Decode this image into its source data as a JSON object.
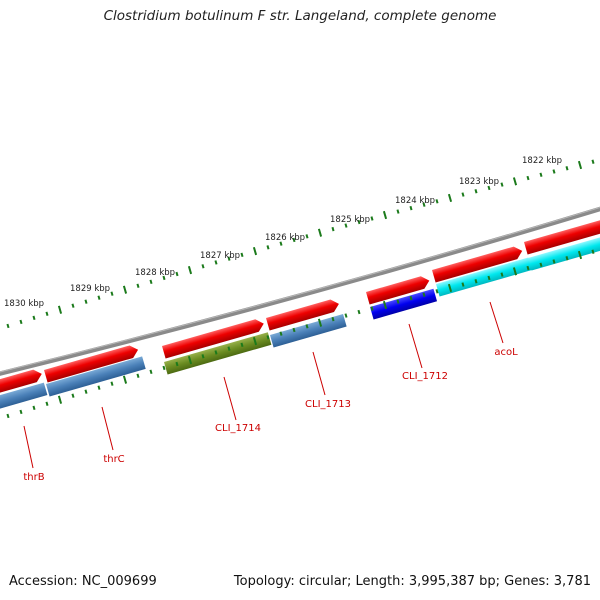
{
  "title": "Clostridium botulinum F str. Langeland, complete genome",
  "footer": {
    "accession": "Accession: NC_009699",
    "stats": "Topology: circular; Length: 3,995,387 bp; Genes: 3,781"
  },
  "kbp_labels": [
    "1822 kbp",
    "1823 kbp",
    "1824 kbp",
    "1825 kbp",
    "1826 kbp",
    "1827 kbp",
    "1828 kbp",
    "1829 kbp",
    "1830 kbp"
  ],
  "gene_labels": [
    "acoL",
    "CLI_1712",
    "CLI_1713",
    "CLI_1714",
    "thrC",
    "thrB"
  ],
  "colors": {
    "backbone": "#7a7a7a",
    "red_track": "#ee0000",
    "steelblue": "#4a80b8",
    "olive": "#6b8c22",
    "blue": "#0000ee",
    "cyan": "#00e8ee",
    "tick": "#1b7a1b",
    "label": "#cc0000"
  }
}
